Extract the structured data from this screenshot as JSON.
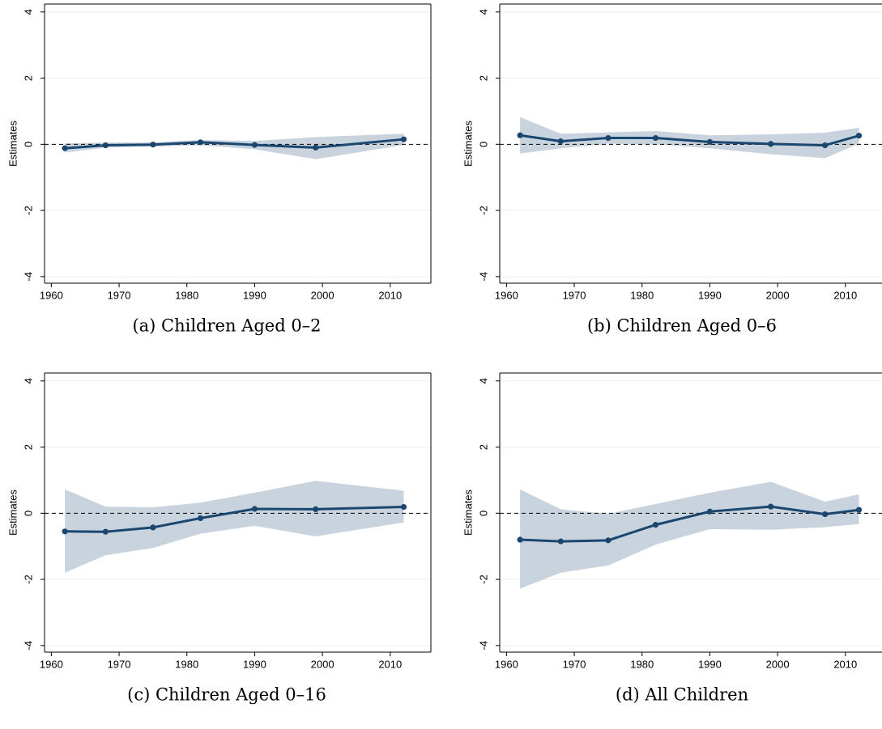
{
  "chart_data": [
    {
      "type": "line",
      "caption": "(a) Children Aged 0–2",
      "ylabel": "Estimates",
      "x": [
        1962,
        1968,
        1975,
        1982,
        1990,
        1999,
        2012
      ],
      "values": [
        -0.12,
        -0.03,
        -0.01,
        0.06,
        -0.02,
        -0.1,
        0.15
      ],
      "lower": [
        -0.25,
        -0.1,
        -0.07,
        -0.03,
        -0.15,
        -0.45,
        -0.02
      ],
      "upper": [
        0.03,
        0.05,
        0.06,
        0.13,
        0.1,
        0.22,
        0.32
      ],
      "color": "#1a476f",
      "band_color": "#c9d3de",
      "reference_line": 0,
      "xlim": [
        1959,
        2016
      ],
      "xticks": [
        1960,
        1970,
        1980,
        1990,
        2000,
        2010
      ],
      "ylim": [
        -4.2,
        4.24
      ],
      "yticks": [
        -4,
        -2,
        0,
        2,
        4
      ],
      "grid": true
    },
    {
      "type": "line",
      "caption": "(b) Children Aged 0–6",
      "ylabel": "Estimates",
      "x": [
        1962,
        1968,
        1975,
        1982,
        1990,
        1999,
        2007,
        2012
      ],
      "values": [
        0.27,
        0.09,
        0.19,
        0.19,
        0.07,
        0.01,
        -0.03,
        0.26
      ],
      "lower": [
        -0.28,
        -0.12,
        0.02,
        0.0,
        -0.12,
        -0.3,
        -0.42,
        0.02
      ],
      "upper": [
        0.82,
        0.32,
        0.36,
        0.4,
        0.27,
        0.3,
        0.35,
        0.5
      ],
      "color": "#1a476f",
      "band_color": "#c9d3de",
      "reference_line": 0,
      "xlim": [
        1959,
        2016
      ],
      "xticks": [
        1960,
        1970,
        1980,
        1990,
        2000,
        2010
      ],
      "ylim": [
        -4.2,
        4.24
      ],
      "yticks": [
        -4,
        -2,
        0,
        2,
        4
      ],
      "grid": true
    },
    {
      "type": "line",
      "caption": "(c) Children Aged 0–16",
      "ylabel": "Estimates",
      "x": [
        1962,
        1968,
        1975,
        1982,
        1990,
        1999,
        2012
      ],
      "values": [
        -0.55,
        -0.56,
        -0.43,
        -0.15,
        0.13,
        0.12,
        0.19
      ],
      "lower": [
        -1.8,
        -1.27,
        -1.05,
        -0.62,
        -0.38,
        -0.7,
        -0.28
      ],
      "upper": [
        0.72,
        0.2,
        0.18,
        0.32,
        0.62,
        0.98,
        0.68
      ],
      "color": "#1a476f",
      "band_color": "#c9d3de",
      "reference_line": 0,
      "xlim": [
        1959,
        2016
      ],
      "xticks": [
        1960,
        1970,
        1980,
        1990,
        2000,
        2010
      ],
      "ylim": [
        -4.2,
        4.24
      ],
      "yticks": [
        -4,
        -2,
        0,
        2,
        4
      ],
      "grid": true
    },
    {
      "type": "line",
      "caption": "(d) All Children",
      "ylabel": "Estimates",
      "x": [
        1962,
        1968,
        1975,
        1982,
        1990,
        1999,
        2007,
        2012
      ],
      "values": [
        -0.8,
        -0.85,
        -0.82,
        -0.35,
        0.05,
        0.2,
        -0.03,
        0.1
      ],
      "lower": [
        -2.28,
        -1.8,
        -1.58,
        -0.95,
        -0.48,
        -0.5,
        -0.42,
        -0.33
      ],
      "upper": [
        0.72,
        0.12,
        -0.02,
        0.28,
        0.62,
        0.95,
        0.35,
        0.57
      ],
      "color": "#1a476f",
      "band_color": "#c9d3de",
      "reference_line": 0,
      "xlim": [
        1959,
        2016
      ],
      "xticks": [
        1960,
        1970,
        1980,
        1990,
        2000,
        2010
      ],
      "ylim": [
        -4.2,
        4.24
      ],
      "yticks": [
        -4,
        -2,
        0,
        2,
        4
      ],
      "grid": true
    }
  ]
}
